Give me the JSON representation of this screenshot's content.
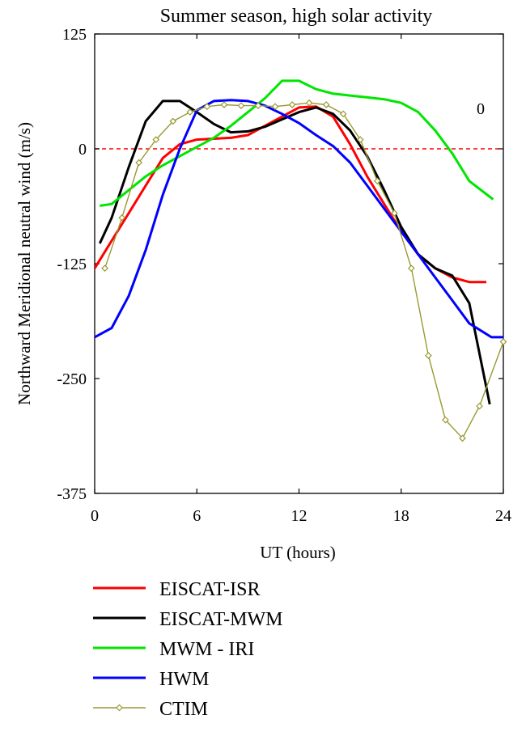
{
  "chart_data": {
    "type": "line",
    "title": "Summer season, high solar activity",
    "xlabel": "UT (hours)",
    "ylabel": "Northward Meridional neutral wind (m/s)",
    "xlim": [
      0,
      24
    ],
    "ylim": [
      -375,
      125
    ],
    "xticks": [
      0,
      6,
      12,
      18,
      24
    ],
    "yticks": [
      125,
      0,
      -125,
      -250,
      -375
    ],
    "ytick_labels": [
      "125",
      "0",
      "-125",
      "-250",
      "-375"
    ],
    "zero_line": {
      "value": 0,
      "style": "dashed",
      "color": "#ff0000"
    },
    "annotation": "0",
    "grid": false,
    "legend_position": "bottom",
    "series": [
      {
        "name": "EISCAT-ISR",
        "color": "#ff0000",
        "marker": "none",
        "x": [
          0,
          1,
          2,
          3,
          4,
          5,
          6,
          7,
          8,
          9,
          10,
          11,
          12,
          13,
          14,
          15,
          16,
          17,
          18,
          19,
          20,
          21,
          22,
          23
        ],
        "y": [
          -130,
          -100,
          -70,
          -40,
          -10,
          5,
          10,
          11,
          12,
          15,
          25,
          35,
          45,
          46,
          35,
          5,
          -30,
          -60,
          -90,
          -115,
          -130,
          -140,
          -145,
          -145
        ]
      },
      {
        "name": "EISCAT-MWM",
        "color": "#000000",
        "marker": "none",
        "x": [
          0.3,
          1,
          2,
          3,
          4,
          5,
          6,
          7,
          8,
          9,
          10,
          11,
          12,
          13,
          14,
          15,
          16,
          17,
          18,
          19,
          20,
          21,
          22,
          23.2
        ],
        "y": [
          -103,
          -75,
          -20,
          30,
          52,
          52,
          40,
          27,
          18,
          19,
          24,
          32,
          40,
          45,
          38,
          20,
          -8,
          -45,
          -85,
          -115,
          -130,
          -138,
          -168,
          -278
        ]
      },
      {
        "name": "MWM - IRI",
        "color": "#00e600",
        "marker": "none",
        "x": [
          0.3,
          1,
          2,
          3,
          4,
          5,
          6,
          7,
          8,
          9,
          10,
          11,
          12,
          13,
          14,
          15,
          16,
          17,
          18,
          19,
          20,
          21,
          22,
          23.4
        ],
        "y": [
          -62,
          -60,
          -45,
          -30,
          -18,
          -8,
          2,
          12,
          25,
          40,
          55,
          74,
          74,
          65,
          60,
          58,
          56,
          54,
          50,
          40,
          20,
          -5,
          -35,
          -55
        ]
      },
      {
        "name": "HWM",
        "color": "#0000ff",
        "marker": "none",
        "x": [
          0,
          1,
          2,
          3,
          4,
          5,
          6,
          7,
          8,
          9,
          10,
          11,
          12,
          13,
          14,
          15,
          16,
          17,
          18,
          19,
          20,
          21,
          22,
          23.3,
          24
        ],
        "y": [
          -205,
          -195,
          -160,
          -110,
          -50,
          0,
          42,
          52,
          53,
          52,
          47,
          38,
          28,
          15,
          3,
          -15,
          -40,
          -65,
          -90,
          -115,
          -140,
          -165,
          -190,
          -205,
          -205
        ]
      },
      {
        "name": "CTIM",
        "color": "#999933",
        "marker": "diamond",
        "x": [
          0.6,
          1.6,
          2.6,
          3.6,
          4.6,
          5.6,
          6.6,
          7.6,
          8.6,
          9.6,
          10.6,
          11.6,
          12.6,
          13.6,
          14.6,
          15.6,
          16.6,
          17.6,
          18.6,
          19.6,
          20.6,
          21.6,
          22.6,
          24
        ],
        "y": [
          -130,
          -75,
          -15,
          10,
          30,
          40,
          46,
          48,
          47,
          47,
          46,
          48,
          50,
          48,
          38,
          10,
          -35,
          -70,
          -130,
          -225,
          -295,
          -315,
          -280,
          -210
        ]
      }
    ]
  }
}
